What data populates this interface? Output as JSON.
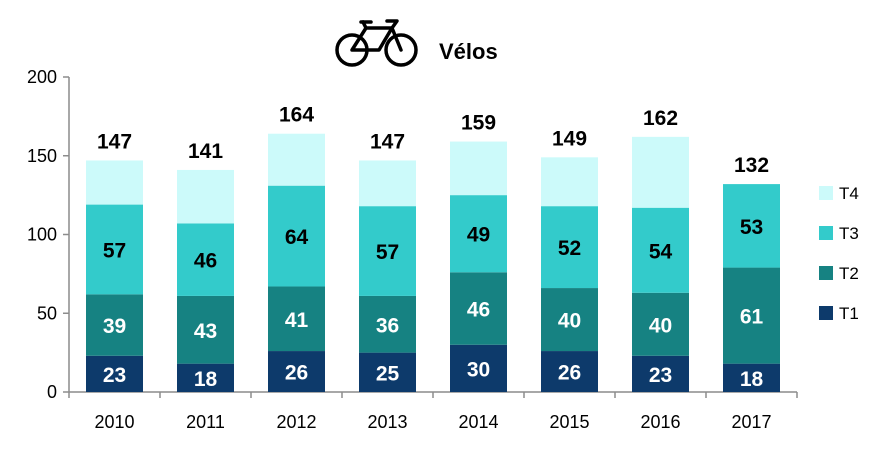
{
  "chart_data": {
    "type": "bar",
    "stacked": true,
    "title": "Vélos",
    "icon": "bicycle-icon",
    "categories": [
      "2010",
      "2011",
      "2012",
      "2013",
      "2014",
      "2015",
      "2016",
      "2017"
    ],
    "series": [
      {
        "name": "T1",
        "color": "#0d3a6b",
        "values": [
          23,
          18,
          26,
          25,
          30,
          26,
          23,
          18
        ]
      },
      {
        "name": "T2",
        "color": "#168282",
        "values": [
          39,
          43,
          41,
          36,
          46,
          40,
          40,
          61
        ]
      },
      {
        "name": "T3",
        "color": "#33cbcb",
        "values": [
          57,
          46,
          64,
          57,
          49,
          52,
          54,
          53
        ]
      },
      {
        "name": "T4",
        "color": "#ccfafa",
        "values": [
          28,
          34,
          33,
          29,
          34,
          31,
          45,
          0
        ]
      }
    ],
    "totals": [
      147,
      141,
      164,
      147,
      159,
      149,
      162,
      132
    ],
    "labeled_series": [
      "T1",
      "T2",
      "T3"
    ],
    "ylim": [
      0,
      200
    ],
    "yticks": [
      0,
      50,
      100,
      150,
      200
    ],
    "xlabel": "",
    "ylabel": "",
    "grid": false,
    "legend_position": "right",
    "legend_order": [
      "T4",
      "T3",
      "T2",
      "T1"
    ]
  }
}
